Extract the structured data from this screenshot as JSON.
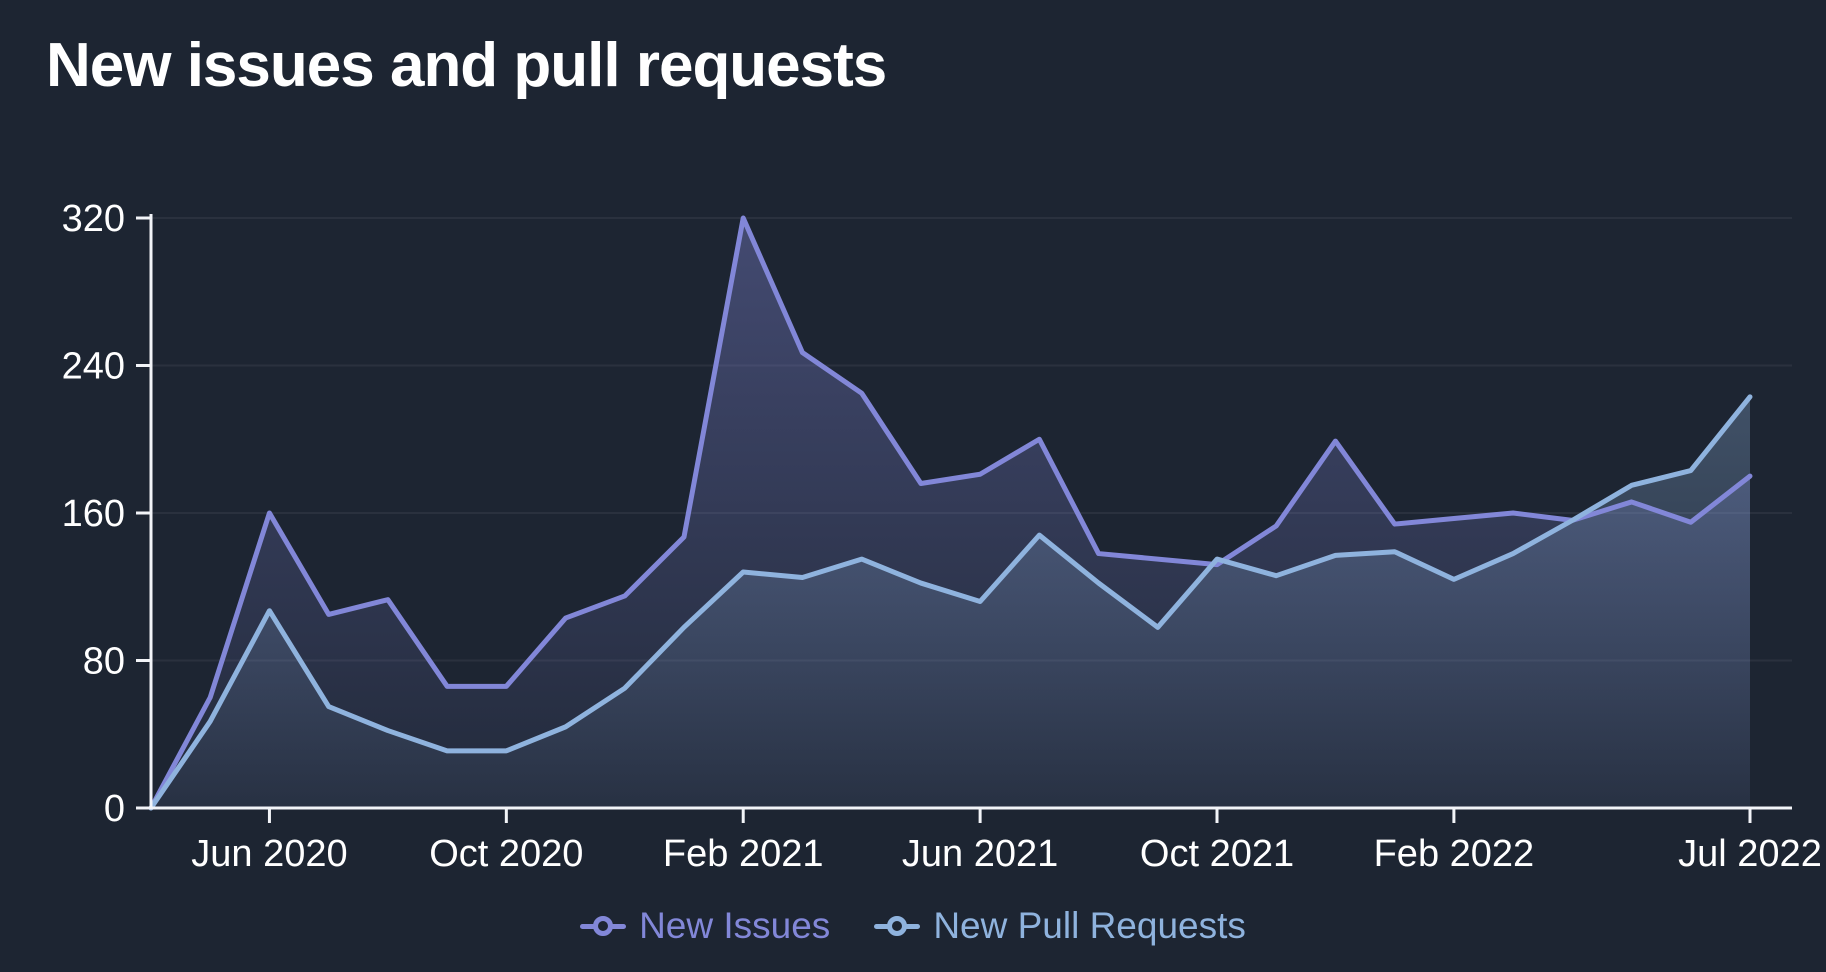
{
  "title": "New issues and pull requests",
  "colors": {
    "background": "#1d2532",
    "axis": "#f2f4f8",
    "tick_label": "#ffffff",
    "grid": "rgba(255,255,255,0.06)",
    "issues": "#8287d8",
    "pull_requests": "#8fb3de"
  },
  "chart_data": {
    "type": "area",
    "title": "New issues and pull requests",
    "x": [
      "Apr 2020",
      "May 2020",
      "Jun 2020",
      "Jul 2020",
      "Aug 2020",
      "Sep 2020",
      "Oct 2020",
      "Nov 2020",
      "Dec 2020",
      "Jan 2021",
      "Feb 2021",
      "Mar 2021",
      "Apr 2021",
      "May 2021",
      "Jun 2021",
      "Jul 2021",
      "Aug 2021",
      "Sep 2021",
      "Oct 2021",
      "Nov 2021",
      "Dec 2021",
      "Jan 2022",
      "Feb 2022",
      "Mar 2022",
      "Apr 2022",
      "May 2022",
      "Jun 2022",
      "Jul 2022"
    ],
    "series": [
      {
        "name": "New Issues",
        "color": "#8287d8",
        "values": [
          0,
          60,
          160,
          105,
          113,
          66,
          66,
          103,
          115,
          147,
          320,
          247,
          225,
          176,
          181,
          200,
          138,
          135,
          132,
          153,
          199,
          154,
          157,
          160,
          156,
          166,
          155,
          180
        ]
      },
      {
        "name": "New Pull Requests",
        "color": "#8fb3de",
        "values": [
          0,
          47,
          107,
          55,
          42,
          31,
          31,
          44,
          65,
          98,
          128,
          125,
          135,
          122,
          112,
          148,
          122,
          98,
          135,
          126,
          137,
          139,
          124,
          138,
          156,
          175,
          183,
          223
        ]
      }
    ],
    "xlabel": "",
    "ylabel": "",
    "ylim": [
      0,
      320
    ],
    "y_ticks": [
      0,
      80,
      160,
      240,
      320
    ],
    "x_tick_labels": [
      "Jun 2020",
      "Oct 2020",
      "Feb 2021",
      "Jun 2021",
      "Oct 2021",
      "Feb 2022",
      "Jul 2022"
    ],
    "x_tick_indices": [
      2,
      6,
      10,
      14,
      18,
      22,
      27
    ],
    "grid": "horizontal",
    "legend_position": "bottom-center"
  }
}
